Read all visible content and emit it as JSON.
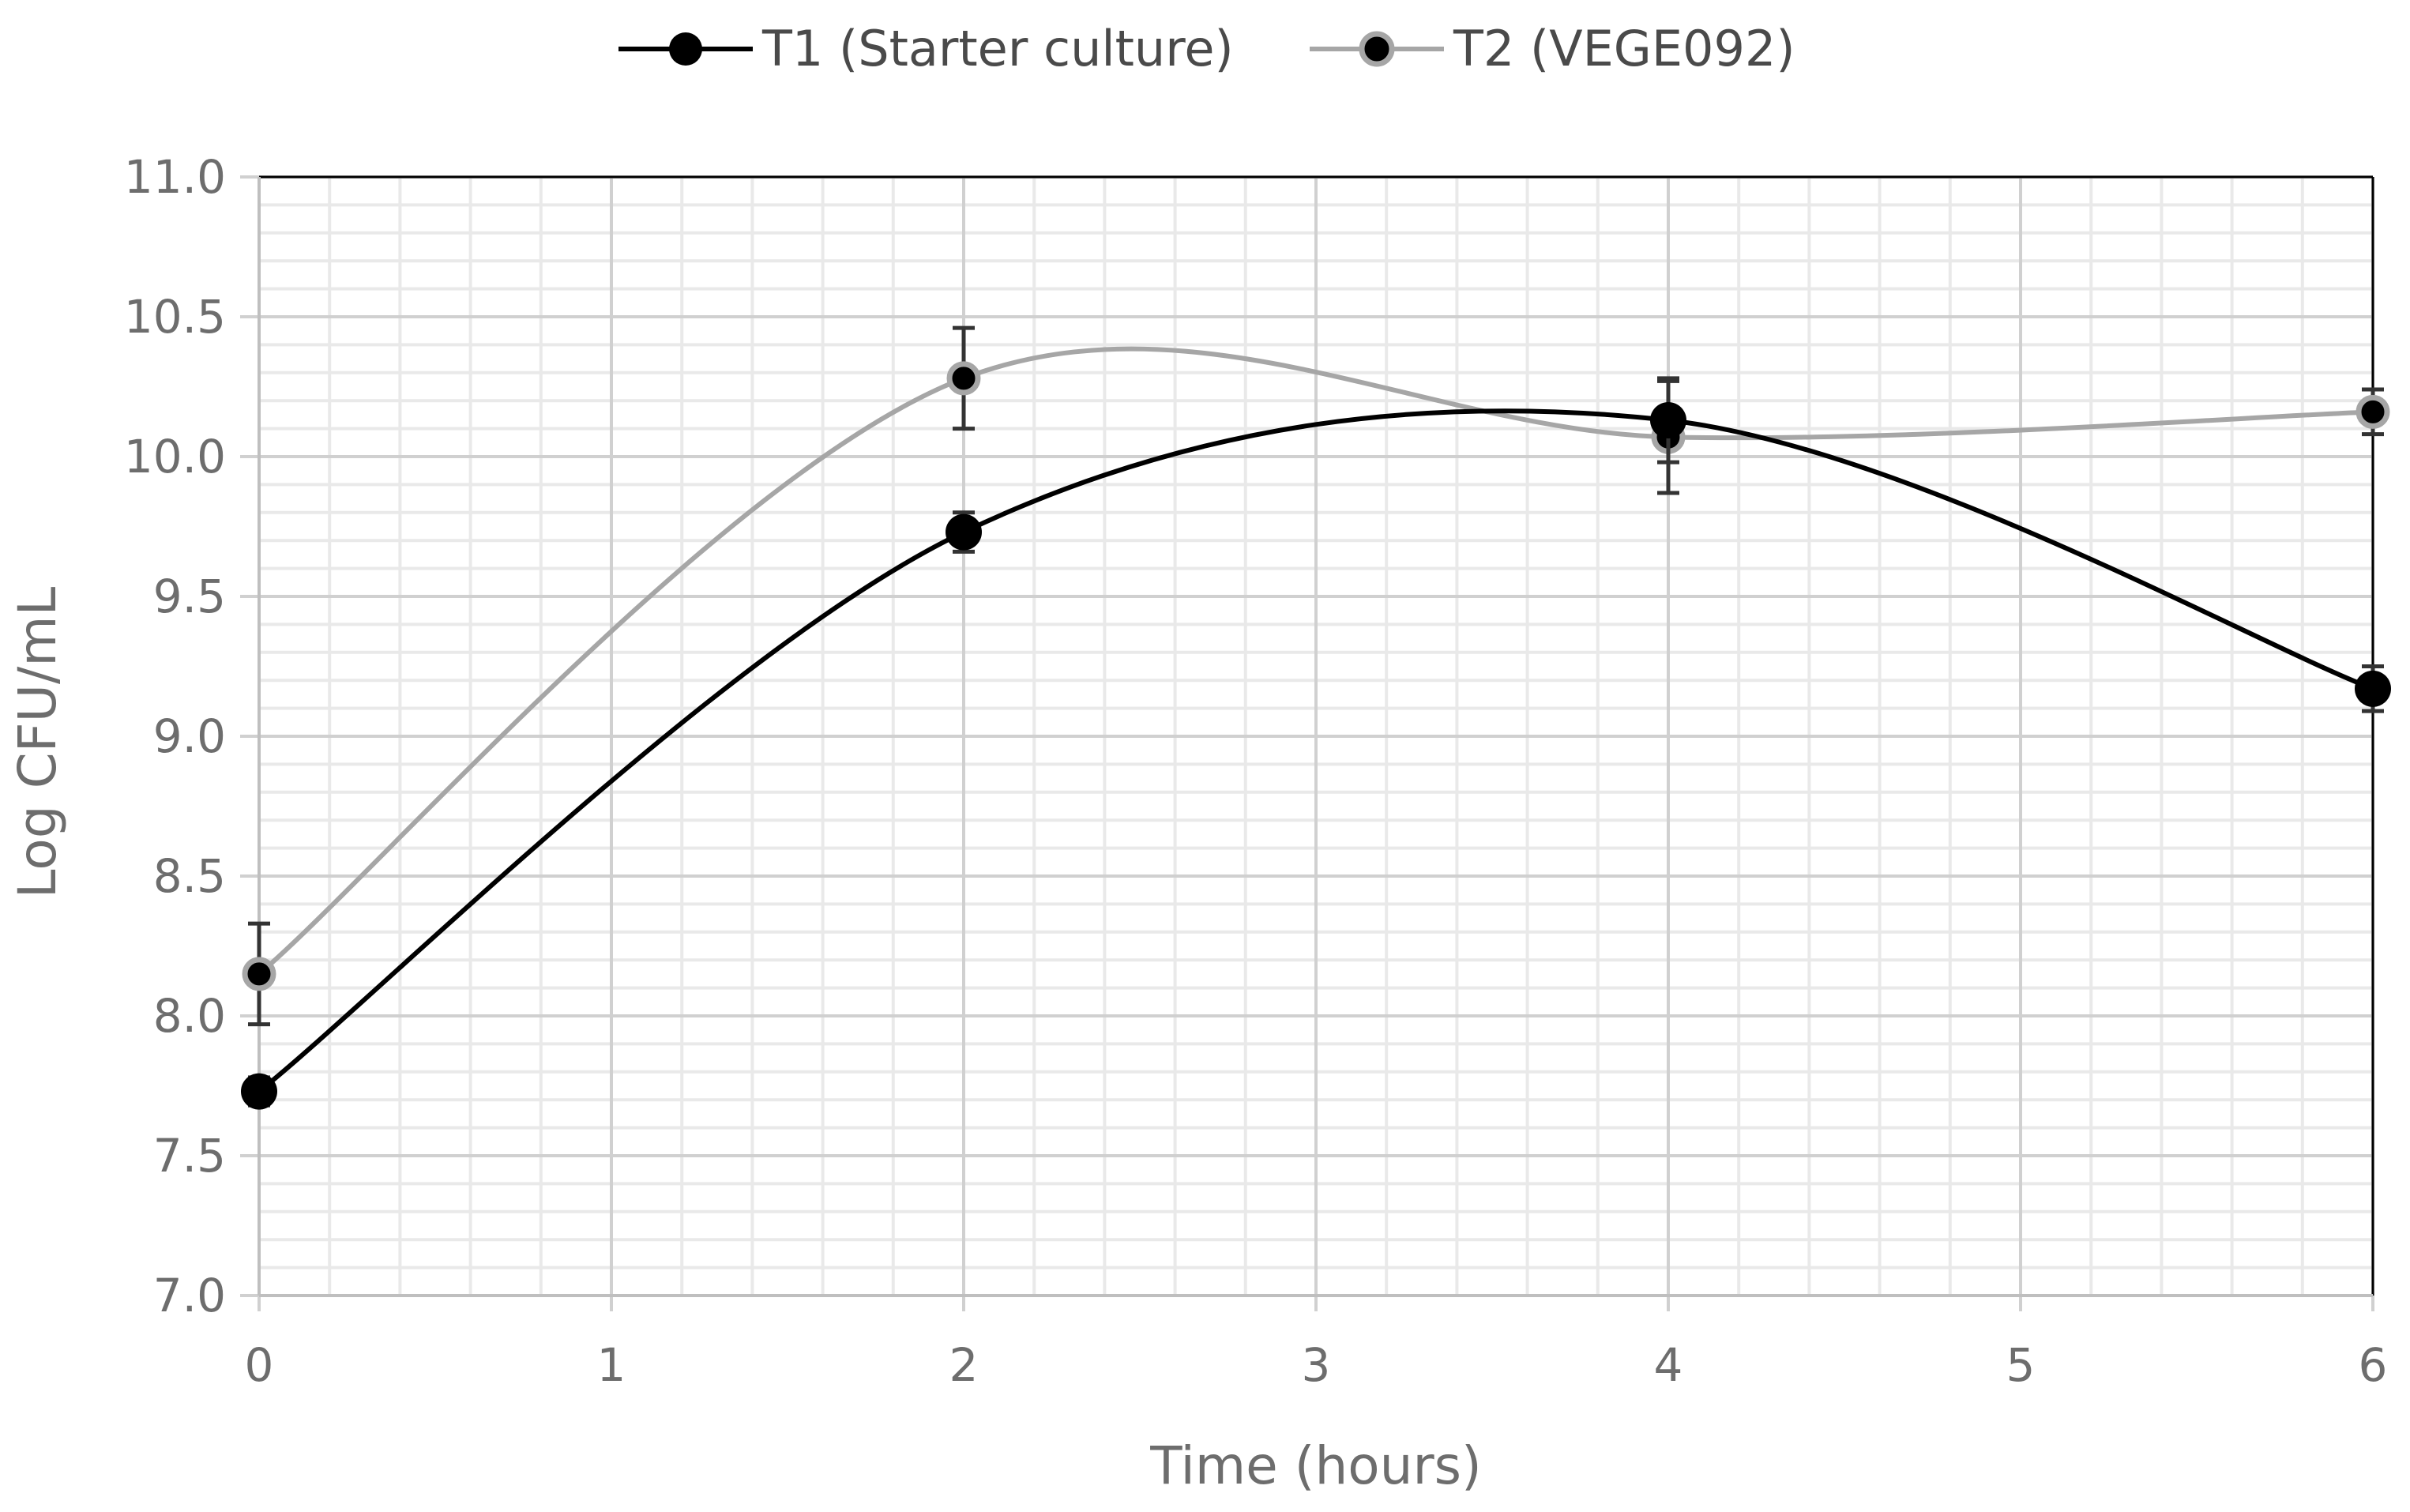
{
  "chart_data": {
    "type": "line",
    "title": "",
    "xlabel": "Time (hours)",
    "ylabel": "Log CFU/mL",
    "x": [
      0,
      2,
      4,
      6
    ],
    "xlim": [
      0,
      6
    ],
    "ylim": [
      7.0,
      11.0
    ],
    "x_ticks": [
      "0",
      "1",
      "2",
      "3",
      "4",
      "5",
      "6"
    ],
    "y_ticks": [
      "7.0",
      "7.5",
      "8.0",
      "8.5",
      "9.0",
      "9.5",
      "10.0",
      "10.5",
      "11.0"
    ],
    "grid": true,
    "smooth": true,
    "legend_position": "top",
    "series": [
      {
        "name": "T1 (Starter culture)",
        "color": "#000000",
        "marker_fill": "#000000",
        "values": [
          7.73,
          9.73,
          10.13,
          9.17
        ],
        "errors": [
          0.05,
          0.07,
          0.15,
          0.08
        ]
      },
      {
        "name": "T2 (VEGE092)",
        "color": "#a6a6a6",
        "marker_fill": "#000000",
        "values": [
          8.15,
          10.28,
          10.07,
          10.16
        ],
        "errors": [
          0.18,
          0.18,
          0.2,
          0.08
        ]
      }
    ]
  }
}
